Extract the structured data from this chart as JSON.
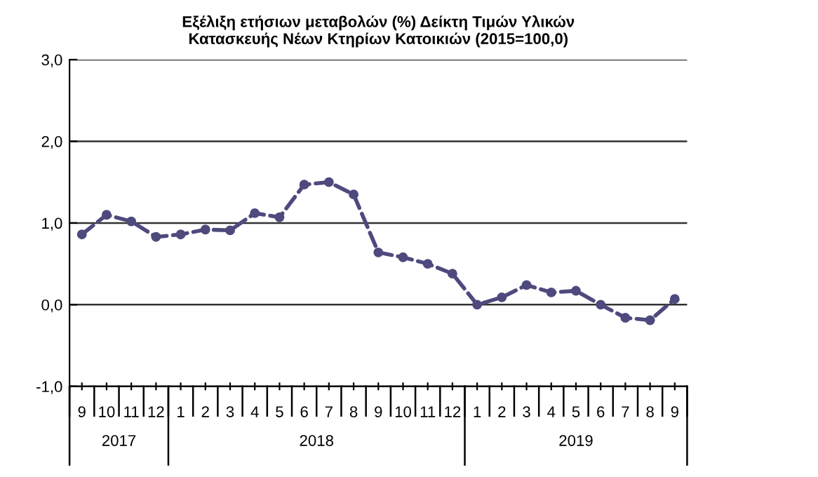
{
  "chart_data": {
    "type": "line",
    "title": "Εξέλιξη ετήσιων μεταβολών (%) Δείκτη Τιμών Υλικών\nΚατασκευής Νέων Κτηρίων Κατοικιών (2015=100,0)",
    "categories": [
      "9",
      "10",
      "11",
      "12",
      "1",
      "2",
      "3",
      "4",
      "5",
      "6",
      "7",
      "8",
      "9",
      "10",
      "11",
      "12",
      "1",
      "2",
      "3",
      "4",
      "5",
      "6",
      "7",
      "8",
      "9"
    ],
    "series": [
      {
        "color": "#4e4a7e",
        "values": [
          0.86,
          1.1,
          1.02,
          0.83,
          0.86,
          0.92,
          0.91,
          1.12,
          1.07,
          1.47,
          1.5,
          1.35,
          0.64,
          0.58,
          0.5,
          0.38,
          0.0,
          0.09,
          0.24,
          0.15,
          0.17,
          0.0,
          -0.16,
          -0.19,
          0.07
        ]
      }
    ],
    "annotations": [
      "2017",
      "2018",
      "2019"
    ],
    "ylim": [
      -1,
      3
    ],
    "yticks": [
      {
        "value": -1,
        "label": "-1,0"
      },
      {
        "value": 0,
        "label": "0,0"
      },
      {
        "value": 1,
        "label": "1,0"
      },
      {
        "value": 2,
        "label": "2,0"
      },
      {
        "value": 3,
        "label": "3,0"
      }
    ],
    "grid": "y",
    "marker": "circle",
    "line_style": "dashed"
  }
}
